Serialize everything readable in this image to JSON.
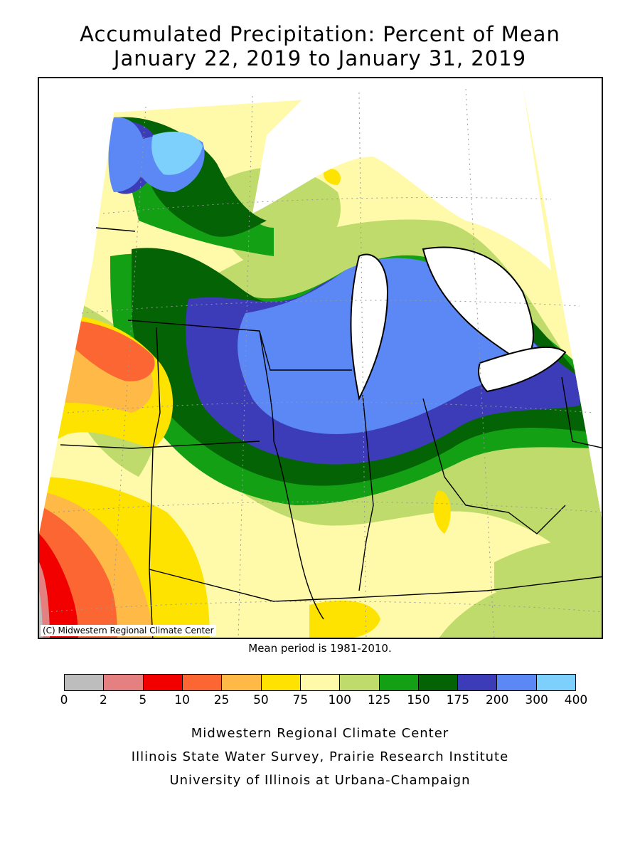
{
  "title": {
    "line1": "Accumulated Precipitation: Percent of Mean",
    "line2": "January 22, 2019 to January 31, 2019"
  },
  "map": {
    "copyright": "(C) Midwestern Regional Climate Center",
    "mean_note": "Mean period is 1981-2010."
  },
  "legend": {
    "bins": [
      {
        "range": "0-2",
        "color": "#bdbdbd"
      },
      {
        "range": "2-5",
        "color": "#e58080"
      },
      {
        "range": "5-10",
        "color": "#f20000"
      },
      {
        "range": "10-25",
        "color": "#fb6633"
      },
      {
        "range": "25-50",
        "color": "#feb946"
      },
      {
        "range": "50-75",
        "color": "#fee200"
      },
      {
        "range": "75-100",
        "color": "#fffaaa"
      },
      {
        "range": "100-125",
        "color": "#bfdb6b"
      },
      {
        "range": "125-150",
        "color": "#14a014"
      },
      {
        "range": "150-175",
        "color": "#046304"
      },
      {
        "range": "175-200",
        "color": "#3c3cb8"
      },
      {
        "range": "200-300",
        "color": "#5b88f5"
      },
      {
        "range": "300-400",
        "color": "#7dd0fb"
      }
    ],
    "ticks": [
      "0",
      "2",
      "5",
      "10",
      "25",
      "50",
      "75",
      "100",
      "125",
      "150",
      "175",
      "200",
      "300",
      "400"
    ]
  },
  "footer": {
    "line1": "Midwestern Regional Climate Center",
    "line2": "Illinois State Water Survey, Prairie Research Institute",
    "line3": "University of Illinois at Urbana-Champaign"
  }
}
